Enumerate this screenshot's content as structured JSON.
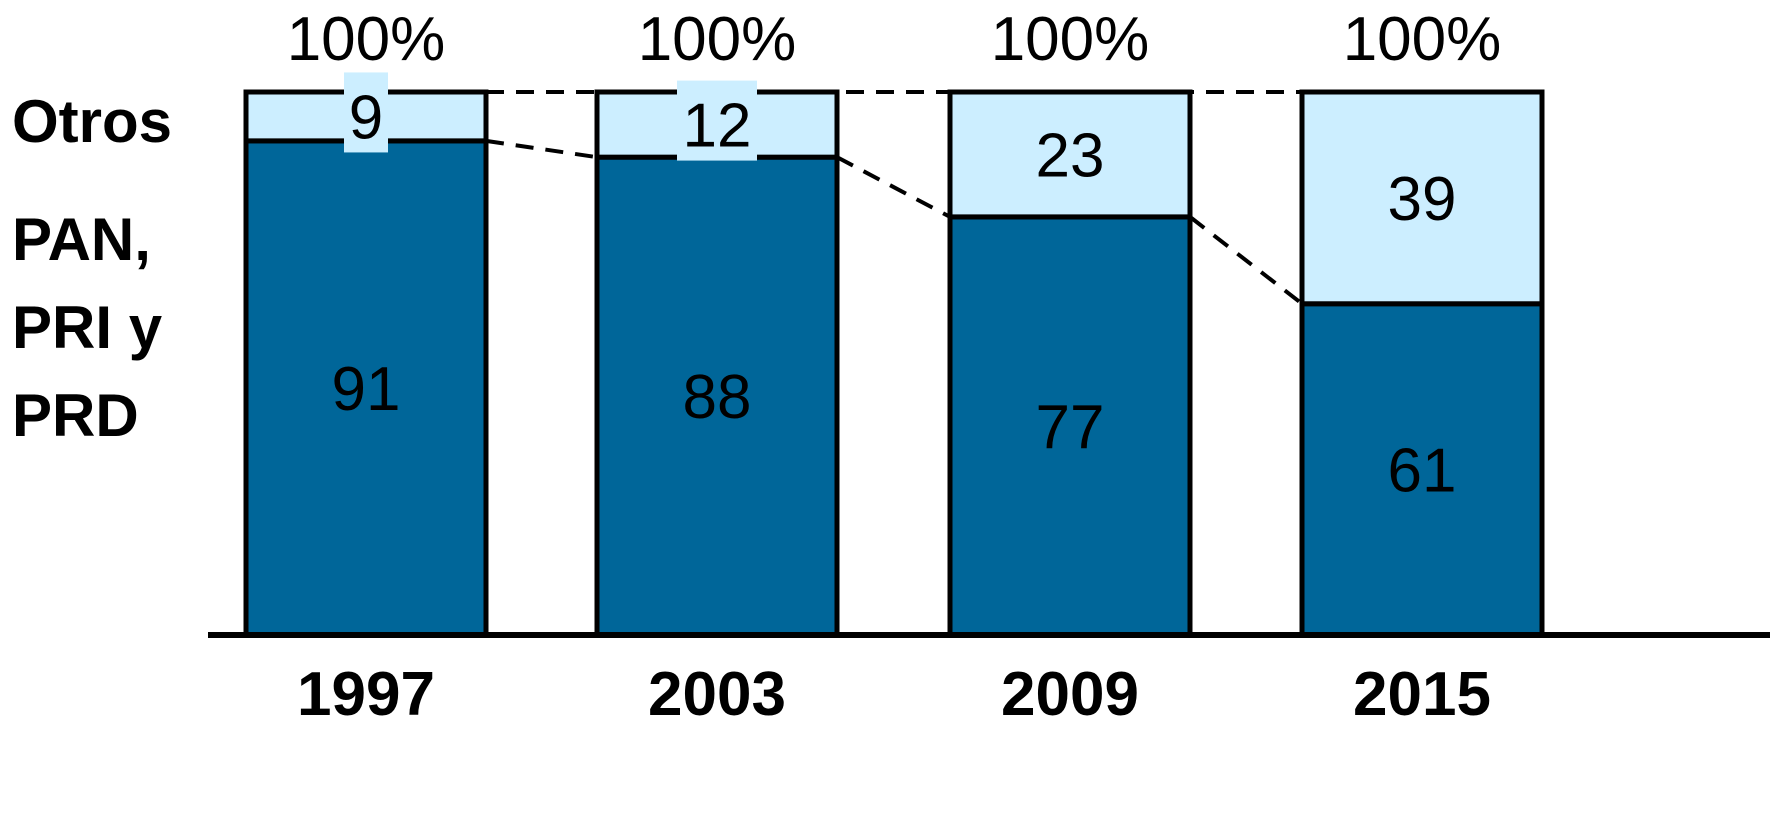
{
  "row_labels": {
    "otros": "Otros",
    "pan": "PAN, PRI y PRD"
  },
  "colors": {
    "bottom_segment": "#006699",
    "top_segment": "#cceeff",
    "outline": "#000000",
    "text": "#000000"
  },
  "chart_data": {
    "type": "bar",
    "stacked": true,
    "categories": [
      "1997",
      "2003",
      "2009",
      "2015"
    ],
    "series": [
      {
        "name": "PAN, PRI y PRD",
        "values": [
          91,
          88,
          77,
          61
        ]
      },
      {
        "name": "Otros",
        "values": [
          9,
          12,
          23,
          39
        ]
      }
    ],
    "totals": [
      "100%",
      "100%",
      "100%",
      "100%"
    ],
    "ylim": [
      0,
      100
    ],
    "grid": false,
    "connectors": "dashed"
  }
}
